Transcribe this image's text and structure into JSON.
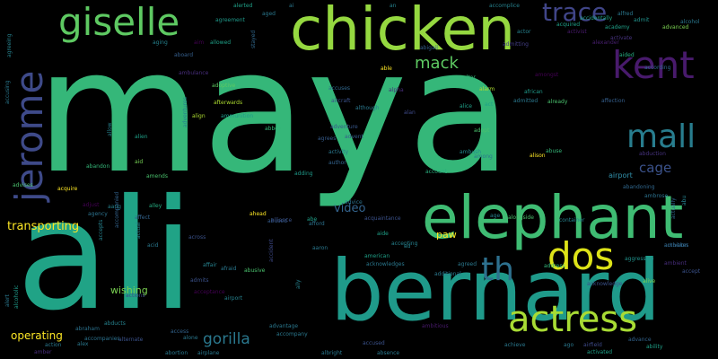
{
  "words": [
    "maya",
    "ali",
    "bernard",
    "chicken",
    "elephant",
    "giselle",
    "kent",
    "jerome",
    "dos",
    "mall",
    "th",
    "trace",
    "mack",
    "cage",
    "transporting",
    "video",
    "paw",
    "gorilla",
    "operating",
    "wishing",
    "actress",
    "airport",
    "abandoning",
    "abduction",
    "ambrose",
    "advice",
    "abused",
    "acquire",
    "advises",
    "agency",
    "adjust",
    "alley",
    "abandon",
    "alarm",
    "alcohol",
    "alfred",
    "accomplice",
    "alerted",
    "aged",
    "agreement",
    "stayed",
    "ai",
    "an",
    "accidentally",
    "acquired",
    "academy",
    "admit",
    "advanced",
    "aim",
    "allowed",
    "aboard",
    "alexander",
    "abigail",
    "admitting",
    "actor",
    "activist",
    "activate",
    "aided",
    "according",
    "able",
    "ambulance",
    "amongst",
    "adoptive",
    "afterwards",
    "ammunition",
    "align",
    "accusing",
    "adopt",
    "advent",
    "affection",
    "abbey",
    "agrees",
    "adventure",
    "author",
    "adding",
    "among",
    "ambush",
    "alison",
    "abuse",
    "already",
    "african",
    "admitted",
    "alice",
    "act",
    "aircraft",
    "although",
    "alan",
    "alpha",
    "accuses",
    "altar",
    "aid",
    "alien",
    "amends",
    "activity",
    "account",
    "acquaintance",
    "across",
    "abusive",
    "afford",
    "aaron",
    "affect",
    "accompanied",
    "actual",
    "actions",
    "alive",
    "acknowledge",
    "agreed",
    "alongside",
    "american",
    "aggressive",
    "ambition",
    "activates",
    "address",
    "ahead",
    "alliance",
    "abe",
    "aide",
    "accident",
    "accept",
    "acknowledges",
    "additional",
    "afraid",
    "admits",
    "accused",
    "achieve",
    "ago",
    "airfield",
    "absence",
    "albright",
    "access",
    "alone",
    "abortion",
    "airplane",
    "advantage",
    "accompany",
    "acid",
    "abraham",
    "accompanies",
    "alex",
    "action",
    "ambitious",
    "advance",
    "ability",
    "activated",
    "abducts",
    "alert",
    "alcoholic",
    "amber",
    "alternate",
    "agreeing",
    "aging",
    "aang",
    "allow",
    "accepts",
    "affair",
    "acceptance",
    "actually",
    "ambient",
    "abu",
    "airport",
    "clean",
    "age",
    "container",
    "ad",
    "accepting",
    "adventures",
    "ally"
  ]
}
